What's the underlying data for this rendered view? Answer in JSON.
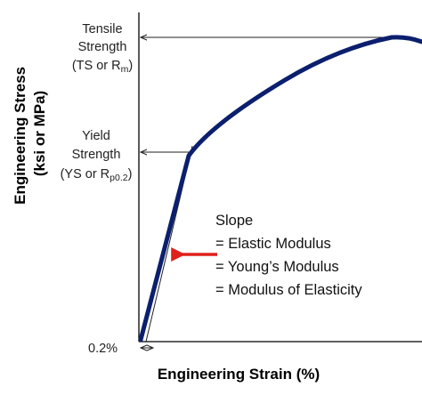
{
  "axes": {
    "y_label_line1": "Engineering Stress",
    "y_label_line2": "(ksi or MPa)",
    "x_label": "Engineering Strain (%)"
  },
  "tensile": {
    "line1": "Tensile",
    "line2": "Strength",
    "line3_pre": "(TS or R",
    "line3_sub": "m",
    "line3_post": ")"
  },
  "yield": {
    "line1": "Yield",
    "line2": "Strength",
    "line3_pre": "(YS or R",
    "line3_sub": "p0.2",
    "line3_post": ")"
  },
  "offset_label": "0.2%",
  "slope": {
    "line1": "Slope",
    "line2": "= Elastic Modulus",
    "line3": "= Young’s Modulus",
    "line4": "= Modulus of Elasticity"
  },
  "colors": {
    "curve": "#0b1f6e",
    "arrow": "#e0201b",
    "axis": "#000000"
  }
}
